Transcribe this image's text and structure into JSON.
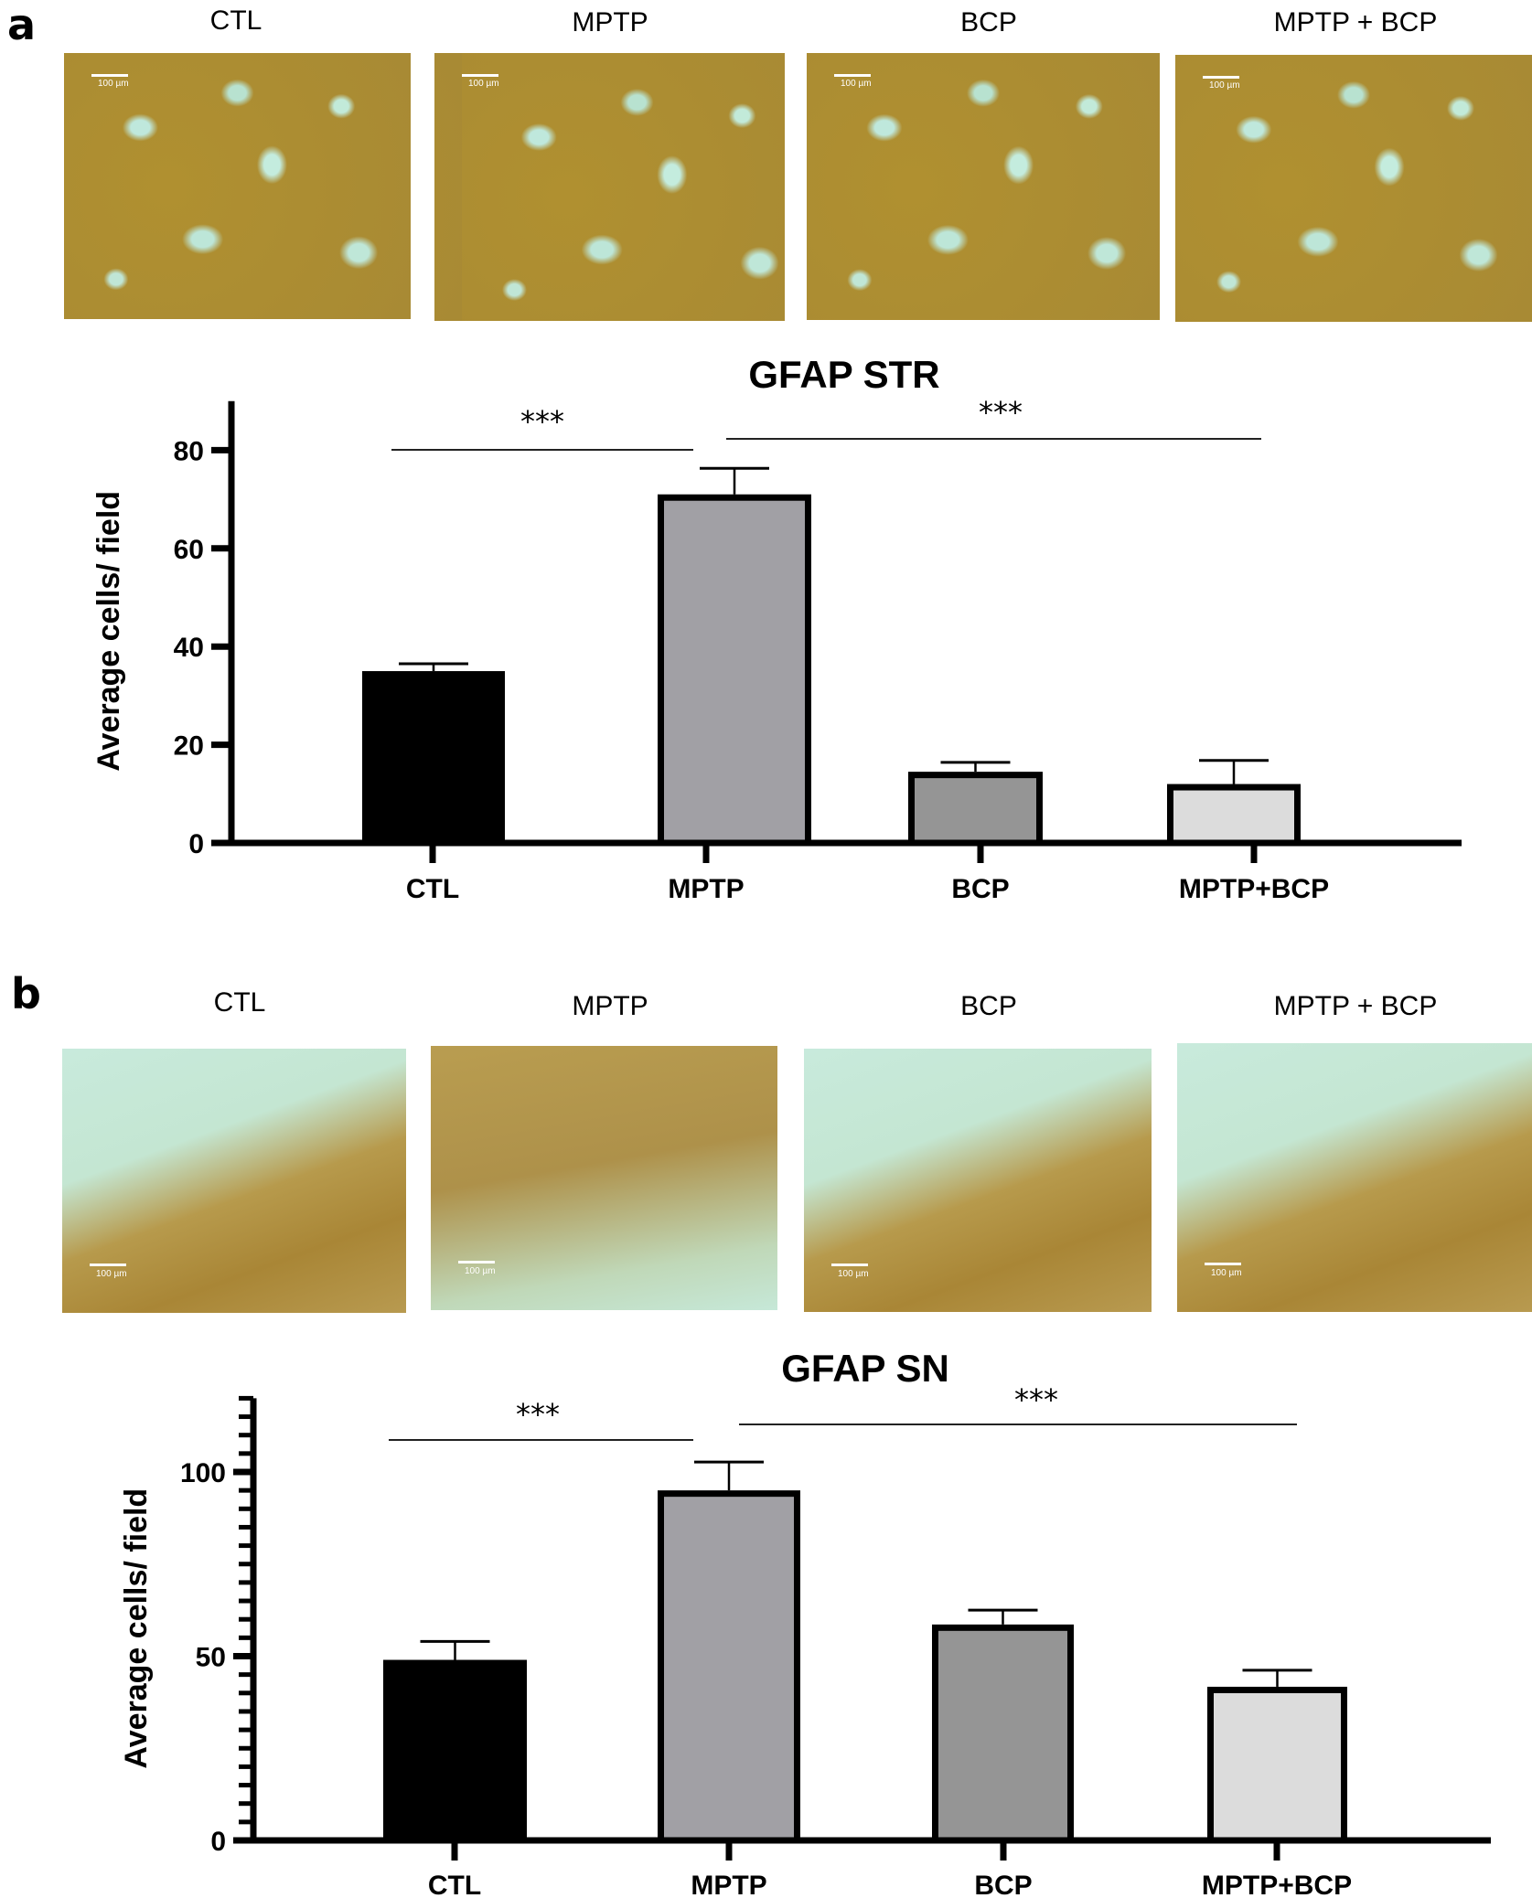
{
  "figure": {
    "panels": [
      {
        "letter": "a",
        "group_labels": [
          "CTL",
          "MPTP",
          "BCP",
          "MPTP + BCP"
        ],
        "scale_bar_label": "100 µm",
        "chart_title": "GFAP STR"
      },
      {
        "letter": "b",
        "group_labels": [
          "CTL",
          "MPTP",
          "BCP",
          "MPTP + BCP"
        ],
        "scale_bar_label": "100 µm",
        "chart_title": "GFAP SN"
      }
    ]
  },
  "colors": {
    "CTL": "#000000",
    "MPTP": "#a1a0a5",
    "BCP": "#959595",
    "MPTP+BCP": "#dcdcdc",
    "axis": "#000000"
  },
  "chart_data": [
    {
      "type": "bar",
      "title": "GFAP STR",
      "categories": [
        "CTL",
        "MPTP",
        "BCP",
        "MPTP+BCP"
      ],
      "values": [
        35,
        71,
        14.5,
        12
      ],
      "error_upper": [
        36.5,
        76.3,
        16.4,
        16.8
      ],
      "xlabel": "",
      "ylabel": "Average cells/ field",
      "ylim": [
        0,
        90
      ],
      "yticks": [
        0,
        20,
        40,
        60,
        80
      ],
      "grid": false,
      "legend": null,
      "annotations": [
        {
          "from": "CTL",
          "to": "MPTP",
          "label": "***"
        },
        {
          "from": "MPTP",
          "to": "MPTP+BCP",
          "label": "***"
        }
      ]
    },
    {
      "type": "bar",
      "title": "GFAP SN",
      "categories": [
        "CTL",
        "MPTP",
        "BCP",
        "MPTP+BCP"
      ],
      "values": [
        49,
        95,
        58.6,
        41.7
      ],
      "error_upper": [
        54,
        102.7,
        62.5,
        46.2
      ],
      "xlabel": "",
      "ylabel": "Average cells/ field",
      "ylim": [
        0,
        120
      ],
      "yticks": [
        0,
        50,
        100
      ],
      "minor_tick_step": 5,
      "grid": false,
      "legend": null,
      "annotations": [
        {
          "from": "CTL",
          "to": "MPTP",
          "label": "***"
        },
        {
          "from": "MPTP",
          "to": "MPTP+BCP",
          "label": "***"
        }
      ]
    }
  ]
}
